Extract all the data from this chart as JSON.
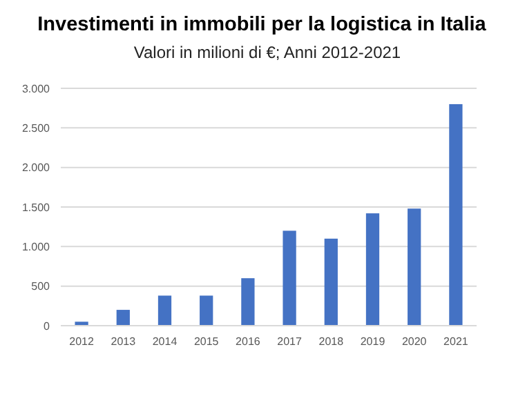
{
  "chart_data": {
    "type": "bar",
    "title": "Investimenti in immobili per la logistica in Italia",
    "subtitle": "Valori in milioni di €; Anni 2012-2021",
    "categories": [
      "2012",
      "2013",
      "2014",
      "2015",
      "2016",
      "2017",
      "2018",
      "2019",
      "2020",
      "2021"
    ],
    "values": [
      50,
      200,
      380,
      380,
      600,
      1200,
      1100,
      1420,
      1480,
      2800
    ],
    "color": "#4472c4",
    "ylim": [
      0,
      3000
    ],
    "yticks": [
      {
        "value": 0,
        "label": "0"
      },
      {
        "value": 500,
        "label": "500"
      },
      {
        "value": 1000,
        "label": "1.000"
      },
      {
        "value": 1500,
        "label": "1.500"
      },
      {
        "value": 2000,
        "label": "2.000"
      },
      {
        "value": 2500,
        "label": "2.500"
      },
      {
        "value": 3000,
        "label": "3.000"
      }
    ],
    "grid": "y"
  }
}
